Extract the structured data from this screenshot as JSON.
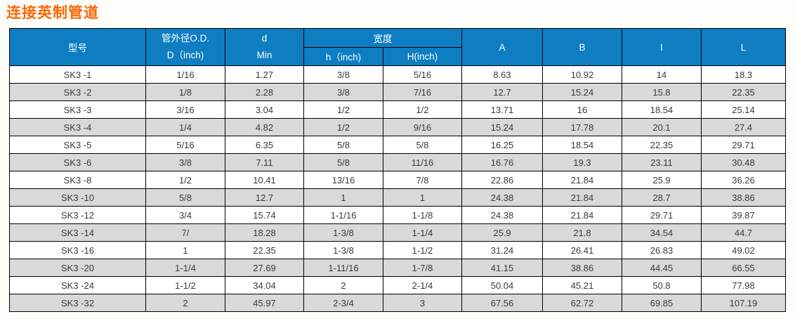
{
  "page": {
    "title": "连接英制管道"
  },
  "colors": {
    "title_text": "#ff6600",
    "header_bg": "#0e7dc2",
    "header_text": "#ffffff",
    "row_stripe_bg": "#d9d9d9",
    "row_bg": "#ffffff",
    "grid_border": "#000000",
    "body_text": "#3a3a3a"
  },
  "table": {
    "header": {
      "model": "型号",
      "od": "管外径O.D.\nD（inch)",
      "d_min": "d\nMin",
      "width_group": "宽度",
      "h_inch": "h（inch)",
      "H_inch": "H(inch)",
      "A": "A",
      "B": "B",
      "I": "I",
      "L": "L"
    },
    "rows": [
      [
        "SK3 -1",
        "1/16",
        "1.27",
        "3/8",
        "5/16",
        "8.63",
        "10.92",
        "14",
        "18.3"
      ],
      [
        "SK3 -2",
        "1/8",
        "2.28",
        "3/8",
        "7/16",
        "12.7",
        "15.24",
        "15.8",
        "22.35"
      ],
      [
        "SK3 -3",
        "3/16",
        "3.04",
        "1/2",
        "1/2",
        "13.71",
        "16",
        "18.54",
        "25.14"
      ],
      [
        "SK3 -4",
        "1/4",
        "4.82",
        "1/2",
        "9/16",
        "15.24",
        "17.78",
        "20.1",
        "27.4"
      ],
      [
        "SK3 -5",
        "5/16",
        "6.35",
        "5/8",
        "5/8",
        "16.25",
        "18.54",
        "22.35",
        "29.71"
      ],
      [
        "SK3 -6",
        "3/8",
        "7.11",
        "5/8",
        "11/16",
        "16.76",
        "19.3",
        "23.11",
        "30.48"
      ],
      [
        "SK3 -8",
        "1/2",
        "10.41",
        "13/16",
        "7/8",
        "22.86",
        "21.84",
        "25.9",
        "36.26"
      ],
      [
        "SK3 -10",
        "5/8",
        "12.7",
        "1",
        "1",
        "24.38",
        "21.84",
        "28.7",
        "38.86"
      ],
      [
        "SK3 -12",
        "3/4",
        "15.74",
        "1-1/16",
        "1-1/8",
        "24.38",
        "21.84",
        "29.71",
        "39.87"
      ],
      [
        "SK3 -14",
        "7/",
        "18.28",
        "1-3/8",
        "1-1/4",
        "25.9",
        "21.8",
        "34.54",
        "44.7"
      ],
      [
        "SK3 -16",
        "1",
        "22.35",
        "1-3/8",
        "1-1/2",
        "31.24",
        "26.41",
        "26.83",
        "49.02"
      ],
      [
        "SK3 -20",
        "1-1/4",
        "27.69",
        "1-11/16",
        "1-7/8",
        "41.15",
        "38.86",
        "44.45",
        "66.55"
      ],
      [
        "SK3 -24",
        "1-1/2",
        "34.04",
        "2",
        "2-1/4",
        "50.04",
        "45.21",
        "50.8",
        "77.98"
      ],
      [
        "SK3 -32",
        "2",
        "45.97",
        "2-3/4",
        "3",
        "67.56",
        "62.72",
        "69.85",
        "107.19"
      ]
    ]
  }
}
